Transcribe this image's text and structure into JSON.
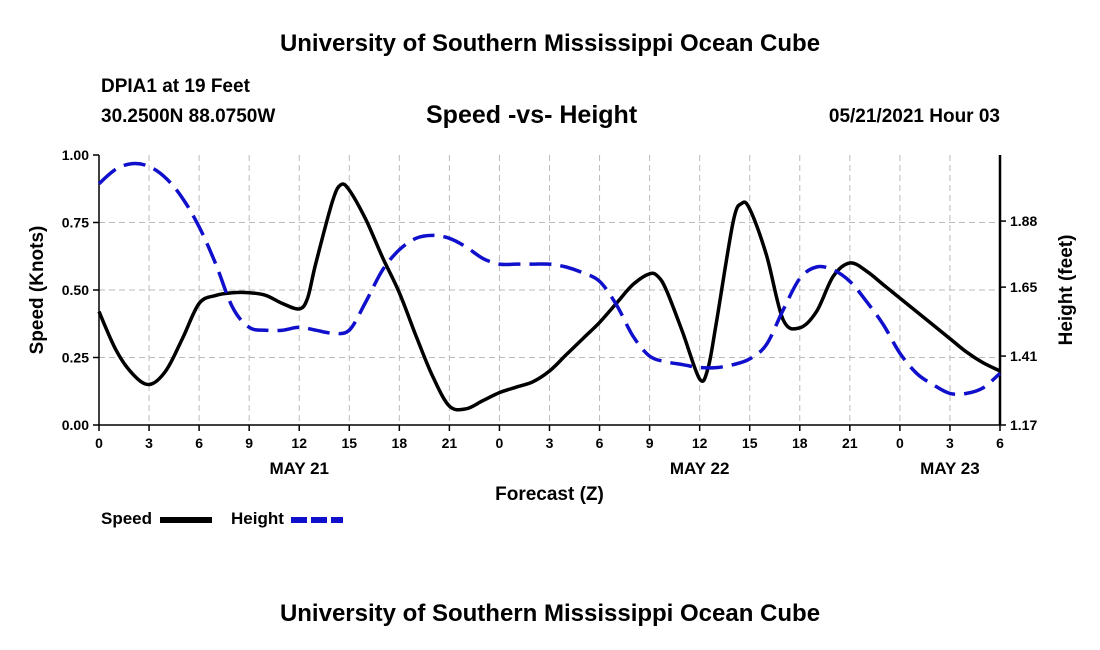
{
  "header": {
    "title": "University of Southern Mississippi Ocean Cube",
    "station": "DPIA1 at 19 Feet",
    "coords": "30.2500N  88.0750W",
    "subtitle": "Speed -vs- Height",
    "datetime": "05/21/2021 Hour 03"
  },
  "footer": {
    "title": "University of Southern Mississippi Ocean Cube"
  },
  "legend": {
    "speed_label": "Speed",
    "height_label": "Height"
  },
  "colors": {
    "speed": "#000000",
    "height": "#1010cc",
    "grid": "#bbbbbb"
  },
  "chart_data": {
    "type": "line",
    "title": "Speed -vs- Height",
    "xlabel": "Forecast (Z)",
    "ylabel": "Speed (Knots)",
    "y2label": "Height (feet)",
    "xlim": [
      0,
      54
    ],
    "ylim": [
      0,
      1
    ],
    "y2lim": [
      1.17,
      2.11
    ],
    "x_ticks": [
      0,
      3,
      6,
      9,
      12,
      15,
      18,
      21,
      24,
      27,
      30,
      33,
      36,
      39,
      42,
      45,
      48,
      51,
      54
    ],
    "x_tick_labels": [
      "0",
      "3",
      "6",
      "9",
      "12",
      "15",
      "18",
      "21",
      "0",
      "3",
      "6",
      "9",
      "12",
      "15",
      "18",
      "21",
      "0",
      "3",
      "6"
    ],
    "date_labels": [
      {
        "x": 12,
        "label": "MAY 21"
      },
      {
        "x": 36,
        "label": "MAY 22"
      },
      {
        "x": 51,
        "label": "MAY 23"
      }
    ],
    "y_ticks": [
      0,
      0.25,
      0.5,
      0.75,
      1.0
    ],
    "y_tick_labels": [
      "0.00",
      "0.25",
      "0.50",
      "0.75",
      "1.00"
    ],
    "y2_ticks": [
      1.17,
      1.41,
      1.65,
      1.88
    ],
    "y2_tick_labels": [
      "1.17",
      "1.41",
      "1.65",
      "1.88"
    ],
    "grid": true,
    "series": [
      {
        "name": "Speed",
        "axis": "left",
        "style": "solid",
        "x": [
          0,
          1,
          2,
          3,
          4,
          5,
          6,
          7,
          8,
          9,
          10,
          11,
          12,
          12.5,
          13,
          14,
          14.5,
          15,
          16,
          17,
          18,
          19,
          20,
          21,
          22,
          23,
          24,
          25,
          26,
          27,
          28,
          29,
          30,
          31,
          32,
          33,
          33.5,
          34,
          35,
          36,
          36.5,
          37,
          38,
          38.5,
          39,
          40,
          41,
          42,
          43,
          44,
          45,
          46,
          47,
          48,
          49,
          50,
          51,
          52,
          53,
          54
        ],
        "values": [
          0.42,
          0.28,
          0.19,
          0.15,
          0.2,
          0.32,
          0.45,
          0.48,
          0.49,
          0.49,
          0.48,
          0.45,
          0.43,
          0.47,
          0.6,
          0.83,
          0.89,
          0.87,
          0.76,
          0.62,
          0.49,
          0.33,
          0.18,
          0.07,
          0.06,
          0.09,
          0.12,
          0.14,
          0.16,
          0.2,
          0.26,
          0.32,
          0.38,
          0.45,
          0.52,
          0.56,
          0.55,
          0.5,
          0.34,
          0.17,
          0.21,
          0.38,
          0.75,
          0.82,
          0.8,
          0.63,
          0.39,
          0.36,
          0.42,
          0.55,
          0.6,
          0.57,
          0.52,
          0.47,
          0.42,
          0.37,
          0.32,
          0.27,
          0.23,
          0.2
        ]
      },
      {
        "name": "Height",
        "axis": "right",
        "style": "dashed",
        "x": [
          0,
          1,
          2,
          3,
          4,
          5,
          6,
          7,
          8,
          9,
          10,
          11,
          12,
          13,
          14,
          15,
          16,
          17,
          18,
          19,
          20,
          21,
          22,
          23,
          24,
          25,
          26,
          27,
          28,
          29,
          30,
          31,
          32,
          33,
          34,
          35,
          36,
          37,
          38,
          39,
          40,
          41,
          42,
          43,
          44,
          45,
          46,
          47,
          48,
          49,
          50,
          51,
          52,
          53,
          54
        ],
        "values": [
          2.01,
          2.06,
          2.08,
          2.07,
          2.03,
          1.96,
          1.86,
          1.73,
          1.58,
          1.51,
          1.5,
          1.5,
          1.51,
          1.5,
          1.49,
          1.5,
          1.6,
          1.71,
          1.78,
          1.82,
          1.83,
          1.82,
          1.79,
          1.75,
          1.73,
          1.73,
          1.73,
          1.73,
          1.72,
          1.7,
          1.67,
          1.59,
          1.48,
          1.41,
          1.39,
          1.38,
          1.37,
          1.37,
          1.38,
          1.4,
          1.45,
          1.57,
          1.68,
          1.72,
          1.71,
          1.67,
          1.6,
          1.52,
          1.42,
          1.35,
          1.31,
          1.28,
          1.28,
          1.3,
          1.35
        ]
      }
    ]
  }
}
